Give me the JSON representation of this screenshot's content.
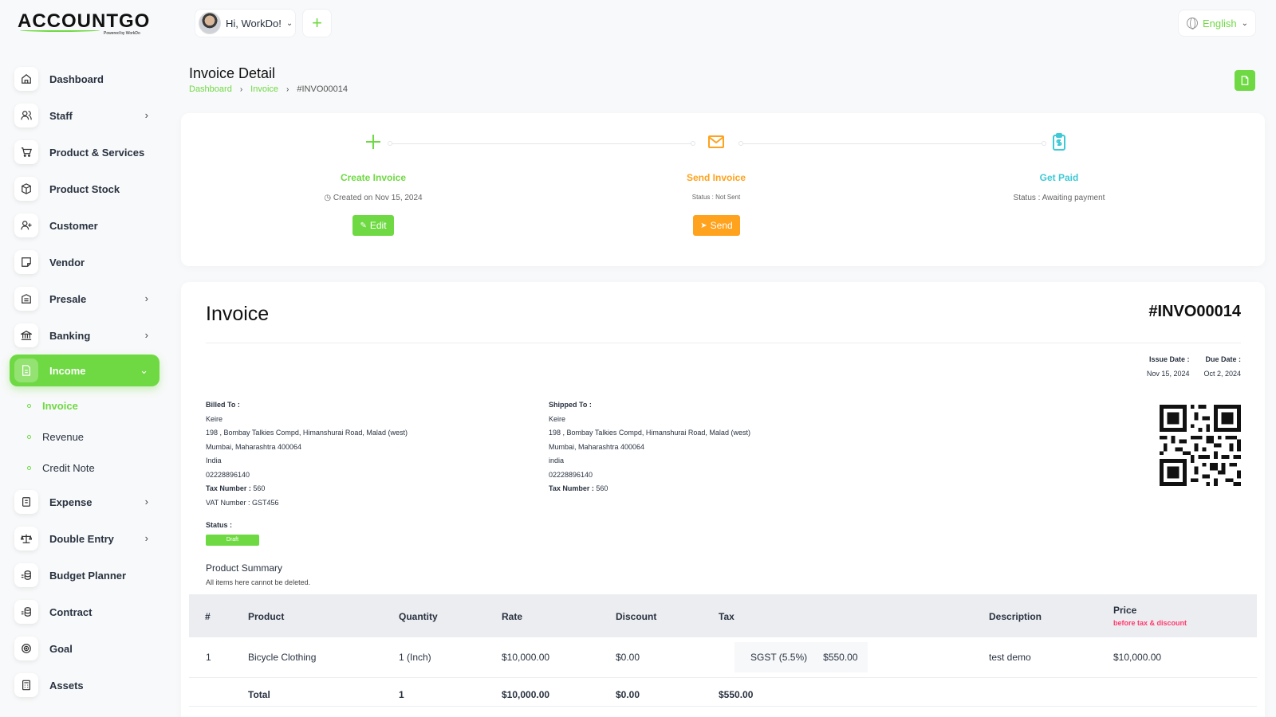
{
  "app": {
    "logo_text": "ACCOUNTGO",
    "logo_sub": "Powered by WorkDo"
  },
  "header": {
    "greeting": "Hi, WorkDo!",
    "add_label": "+",
    "language": "English"
  },
  "sidebar": {
    "items": [
      {
        "label": "Dashboard",
        "icon": "home-icon"
      },
      {
        "label": "Staff",
        "icon": "users-icon",
        "has_arrow": true
      },
      {
        "label": "Product & Services",
        "icon": "cart-icon"
      },
      {
        "label": "Product Stock",
        "icon": "box-icon"
      },
      {
        "label": "Customer",
        "icon": "user-plus-icon"
      },
      {
        "label": "Vendor",
        "icon": "note-icon"
      },
      {
        "label": "Presale",
        "icon": "building-icon",
        "has_arrow": true
      },
      {
        "label": "Banking",
        "icon": "bank-icon",
        "has_arrow": true
      },
      {
        "label": "Income",
        "icon": "file-icon",
        "active": true
      },
      {
        "label": "Expense",
        "icon": "receipt-icon",
        "has_arrow": true
      },
      {
        "label": "Double Entry",
        "icon": "scale-icon",
        "has_arrow": true
      },
      {
        "label": "Budget Planner",
        "icon": "coins-icon"
      },
      {
        "label": "Contract",
        "icon": "contract-icon"
      },
      {
        "label": "Goal",
        "icon": "target-icon"
      },
      {
        "label": "Assets",
        "icon": "calculator-icon"
      }
    ],
    "income_sub": [
      {
        "label": "Invoice",
        "active": true
      },
      {
        "label": "Revenue"
      },
      {
        "label": "Credit Note"
      }
    ]
  },
  "page": {
    "title": "Invoice Detail",
    "breadcrumb": [
      "Dashboard",
      "Invoice",
      "#INVO00014"
    ]
  },
  "steps": [
    {
      "title": "Create Invoice",
      "meta": "Created on Nov 15, 2024",
      "button": "Edit",
      "color": "#6fd943"
    },
    {
      "title": "Send Invoice",
      "meta": "Status : Not Sent",
      "button": "Send",
      "color": "#ffa21d"
    },
    {
      "title": "Get Paid",
      "meta": "Status : Awaiting payment",
      "color": "#3ec9d6"
    }
  ],
  "invoice": {
    "heading": "Invoice",
    "number": "#INVO00014",
    "issue_date_label": "Issue Date :",
    "issue_date": "Nov 15, 2024",
    "due_date_label": "Due Date :",
    "due_date": "Oct 2, 2024",
    "billed_to": {
      "label": "Billed To :",
      "name": "Keire",
      "address": "198 , Bombay Talkies Compd, Himanshurai Road, Malad (west)",
      "city": "Mumbai, Maharashtra 400064",
      "country": "India",
      "phone": "02228896140",
      "tax_label": "Tax Number :",
      "tax": "560",
      "vat": "VAT Number : GST456"
    },
    "shipped_to": {
      "label": "Shipped To :",
      "name": "Keire",
      "address": "198 , Bombay Talkies Compd, Himanshurai Road, Malad (west)",
      "city": "Mumbai, Maharashtra 400064",
      "country": "india",
      "phone": "02228896140",
      "tax_label": "Tax Number :",
      "tax": "560"
    },
    "status_label": "Status :",
    "status": "Draft",
    "summary_title": "Product Summary",
    "summary_note": "All items here cannot be deleted."
  },
  "table": {
    "headers": {
      "num": "#",
      "product": "Product",
      "quantity": "Quantity",
      "rate": "Rate",
      "discount": "Discount",
      "tax": "Tax",
      "description": "Description",
      "price": "Price",
      "price_note": "before tax & discount"
    },
    "rows": [
      {
        "num": "1",
        "product": "Bicycle Clothing",
        "quantity": "1 (Inch)",
        "rate": "$10,000.00",
        "discount": "$0.00",
        "tax_name": "SGST (5.5%)",
        "tax_amount": "$550.00",
        "description": "test demo",
        "price": "$10,000.00"
      }
    ],
    "total": {
      "label": "Total",
      "quantity": "1",
      "rate": "$10,000.00",
      "discount": "$0.00",
      "tax": "$550.00"
    }
  }
}
